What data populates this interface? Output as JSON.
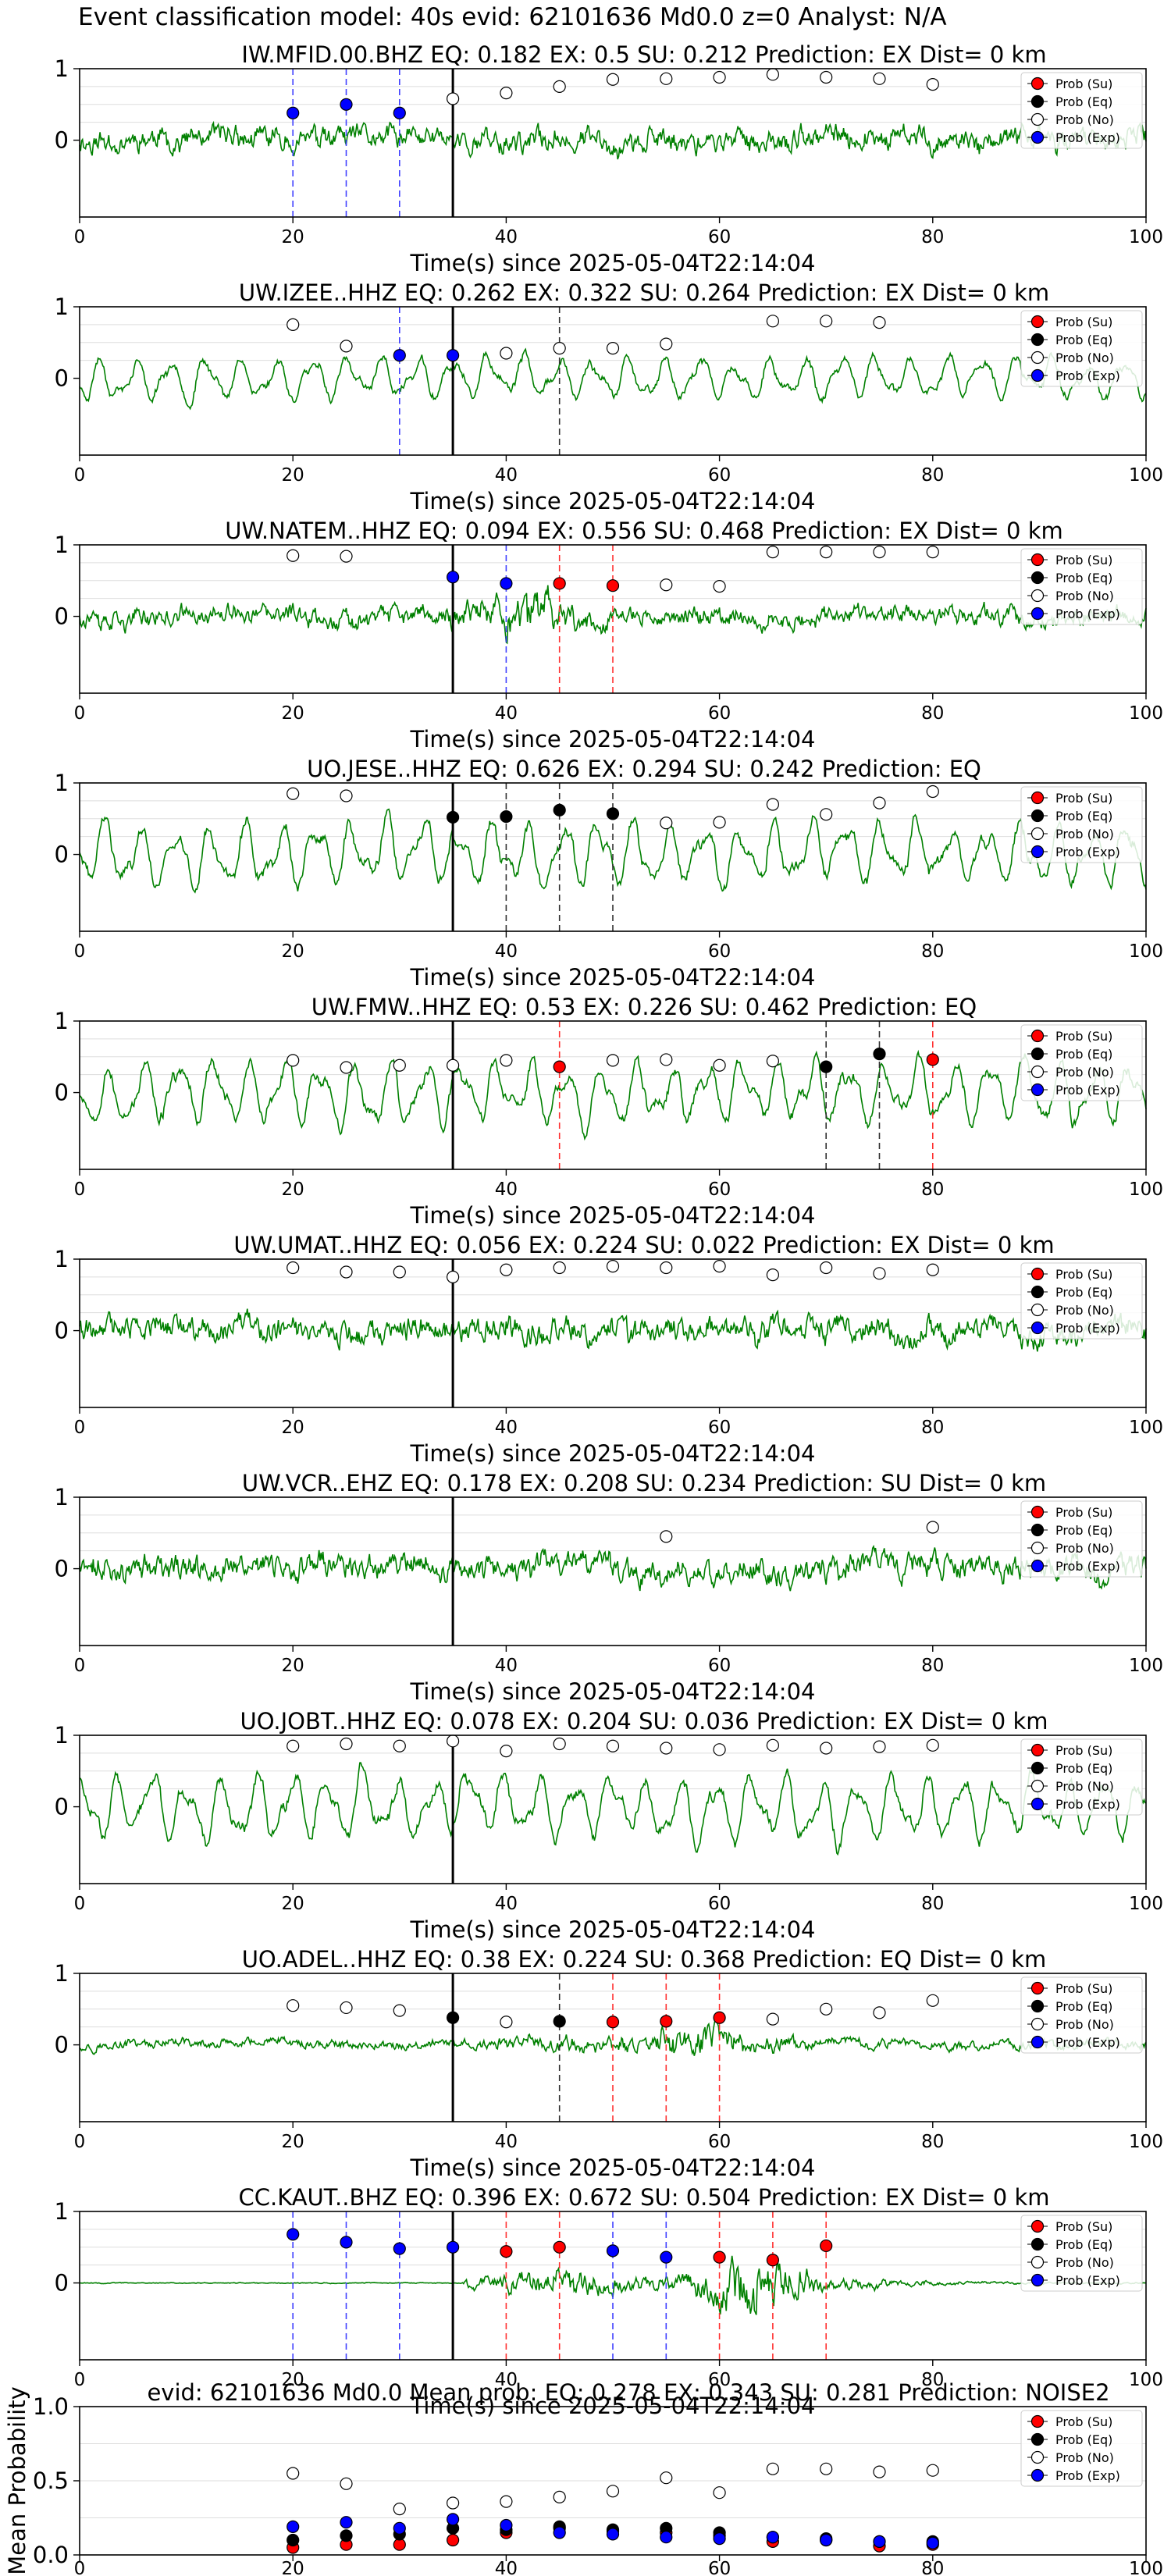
{
  "chart_data": {
    "type": "line",
    "suptitle": "Event classification model: 40s evid: 62101636 Md0.0 z=0 Analyst: N/A",
    "legend_entries": [
      "Prob (Su)",
      "Prob (Eq)",
      "Prob (No)",
      "Prob (Exp)"
    ],
    "legend_placement": "top-right",
    "colors": {
      "su": "#ff0000",
      "eq": "#000000",
      "no": "#ffffff",
      "exp": "#0000ff",
      "trace": "#008000",
      "grid": "#dddddd"
    },
    "xlim": [
      0,
      100
    ],
    "xticks": [
      "0",
      "20",
      "40",
      "60",
      "80",
      "100"
    ],
    "yticks": [
      "1",
      "0"
    ],
    "xlabel": "Time(s) since 2025-05-04T22:14:04",
    "origin_time_s": 35,
    "panels": [
      {
        "title": "IW.MFID.00.BHZ   EQ: 0.182  EX: 0.5  SU: 0.212   Prediction: EX    Dist= 0 km",
        "amp": 0.45,
        "style": "noisy",
        "seed": 11,
        "points": [
          {
            "x": 20,
            "cls": "exp",
            "v": 0.38
          },
          {
            "x": 25,
            "cls": "exp",
            "v": 0.5
          },
          {
            "x": 30,
            "cls": "exp",
            "v": 0.38
          },
          {
            "x": 35,
            "cls": "no",
            "v": 0.58
          },
          {
            "x": 40,
            "cls": "no",
            "v": 0.66
          },
          {
            "x": 45,
            "cls": "no",
            "v": 0.75
          },
          {
            "x": 50,
            "cls": "no",
            "v": 0.85
          },
          {
            "x": 55,
            "cls": "no",
            "v": 0.86
          },
          {
            "x": 60,
            "cls": "no",
            "v": 0.88
          },
          {
            "x": 65,
            "cls": "no",
            "v": 0.92
          },
          {
            "x": 70,
            "cls": "no",
            "v": 0.88
          },
          {
            "x": 75,
            "cls": "no",
            "v": 0.86
          },
          {
            "x": 80,
            "cls": "no",
            "v": 0.78
          }
        ],
        "vlines": [
          {
            "x": 20,
            "cls": "exp"
          },
          {
            "x": 25,
            "cls": "exp"
          },
          {
            "x": 30,
            "cls": "exp"
          }
        ]
      },
      {
        "title": "UW.IZEE..HHZ   EQ: 0.262  EX: 0.322  SU: 0.264   Prediction: EX    Dist= 0 km",
        "amp": 0.4,
        "style": "wavy",
        "seed": 23,
        "points": [
          {
            "x": 20,
            "cls": "no",
            "v": 0.75
          },
          {
            "x": 25,
            "cls": "no",
            "v": 0.45
          },
          {
            "x": 30,
            "cls": "exp",
            "v": 0.32
          },
          {
            "x": 35,
            "cls": "exp",
            "v": 0.32
          },
          {
            "x": 40,
            "cls": "no",
            "v": 0.35
          },
          {
            "x": 45,
            "cls": "no",
            "v": 0.42
          },
          {
            "x": 50,
            "cls": "no",
            "v": 0.42
          },
          {
            "x": 55,
            "cls": "no",
            "v": 0.48
          },
          {
            "x": 65,
            "cls": "no",
            "v": 0.8
          },
          {
            "x": 70,
            "cls": "no",
            "v": 0.8
          },
          {
            "x": 75,
            "cls": "no",
            "v": 0.78
          }
        ],
        "vlines": [
          {
            "x": 30,
            "cls": "exp"
          },
          {
            "x": 45,
            "cls": "eq"
          }
        ]
      },
      {
        "title": "UW.NATEM..HHZ   EQ: 0.094  EX: 0.556  SU: 0.468   Prediction: EX    Dist= 0 km",
        "amp": 0.5,
        "style": "burst",
        "seed": 37,
        "points": [
          {
            "x": 20,
            "cls": "no",
            "v": 0.85
          },
          {
            "x": 25,
            "cls": "no",
            "v": 0.84
          },
          {
            "x": 35,
            "cls": "exp",
            "v": 0.55
          },
          {
            "x": 40,
            "cls": "exp",
            "v": 0.46
          },
          {
            "x": 45,
            "cls": "su",
            "v": 0.46
          },
          {
            "x": 50,
            "cls": "su",
            "v": 0.43
          },
          {
            "x": 55,
            "cls": "no",
            "v": 0.44
          },
          {
            "x": 60,
            "cls": "no",
            "v": 0.42
          },
          {
            "x": 65,
            "cls": "no",
            "v": 0.9
          },
          {
            "x": 70,
            "cls": "no",
            "v": 0.9
          },
          {
            "x": 75,
            "cls": "no",
            "v": 0.9
          },
          {
            "x": 80,
            "cls": "no",
            "v": 0.9
          }
        ],
        "vlines": [
          {
            "x": 40,
            "cls": "exp"
          },
          {
            "x": 45,
            "cls": "su"
          },
          {
            "x": 50,
            "cls": "su"
          }
        ]
      },
      {
        "title": "UO.JESE..HHZ   EQ: 0.626  EX: 0.294  SU: 0.242   Prediction: EQ",
        "amp": 0.6,
        "style": "wavy",
        "seed": 41,
        "points": [
          {
            "x": 20,
            "cls": "no",
            "v": 0.85
          },
          {
            "x": 25,
            "cls": "no",
            "v": 0.82
          },
          {
            "x": 35,
            "cls": "eq",
            "v": 0.52
          },
          {
            "x": 40,
            "cls": "eq",
            "v": 0.53
          },
          {
            "x": 45,
            "cls": "eq",
            "v": 0.62
          },
          {
            "x": 50,
            "cls": "eq",
            "v": 0.57
          },
          {
            "x": 55,
            "cls": "no",
            "v": 0.44
          },
          {
            "x": 60,
            "cls": "no",
            "v": 0.45
          },
          {
            "x": 65,
            "cls": "no",
            "v": 0.7
          },
          {
            "x": 70,
            "cls": "no",
            "v": 0.56
          },
          {
            "x": 75,
            "cls": "no",
            "v": 0.72
          },
          {
            "x": 80,
            "cls": "no",
            "v": 0.88
          }
        ],
        "vlines": [
          {
            "x": 40,
            "cls": "eq"
          },
          {
            "x": 45,
            "cls": "eq"
          },
          {
            "x": 50,
            "cls": "eq"
          }
        ]
      },
      {
        "title": "UW.FMW..HHZ   EQ: 0.53  EX: 0.226  SU: 0.462   Prediction: EQ",
        "amp": 0.6,
        "style": "wavy",
        "seed": 53,
        "points": [
          {
            "x": 20,
            "cls": "no",
            "v": 0.45
          },
          {
            "x": 25,
            "cls": "no",
            "v": 0.35
          },
          {
            "x": 30,
            "cls": "no",
            "v": 0.38
          },
          {
            "x": 35,
            "cls": "no",
            "v": 0.38
          },
          {
            "x": 40,
            "cls": "no",
            "v": 0.45
          },
          {
            "x": 45,
            "cls": "su",
            "v": 0.36
          },
          {
            "x": 50,
            "cls": "no",
            "v": 0.45
          },
          {
            "x": 55,
            "cls": "no",
            "v": 0.46
          },
          {
            "x": 60,
            "cls": "no",
            "v": 0.38
          },
          {
            "x": 65,
            "cls": "no",
            "v": 0.44
          },
          {
            "x": 70,
            "cls": "eq",
            "v": 0.36
          },
          {
            "x": 75,
            "cls": "eq",
            "v": 0.54
          },
          {
            "x": 80,
            "cls": "su",
            "v": 0.46
          }
        ],
        "vlines": [
          {
            "x": 45,
            "cls": "su"
          },
          {
            "x": 70,
            "cls": "eq"
          },
          {
            "x": 75,
            "cls": "eq"
          },
          {
            "x": 80,
            "cls": "su"
          }
        ]
      },
      {
        "title": "UW.UMAT..HHZ   EQ: 0.056  EX: 0.224  SU: 0.022   Prediction: EX    Dist= 0 km",
        "amp": 0.5,
        "style": "noisy",
        "seed": 61,
        "points": [
          {
            "x": 20,
            "cls": "no",
            "v": 0.88
          },
          {
            "x": 25,
            "cls": "no",
            "v": 0.82
          },
          {
            "x": 30,
            "cls": "no",
            "v": 0.82
          },
          {
            "x": 35,
            "cls": "no",
            "v": 0.75
          },
          {
            "x": 40,
            "cls": "no",
            "v": 0.85
          },
          {
            "x": 45,
            "cls": "no",
            "v": 0.88
          },
          {
            "x": 50,
            "cls": "no",
            "v": 0.9
          },
          {
            "x": 55,
            "cls": "no",
            "v": 0.88
          },
          {
            "x": 60,
            "cls": "no",
            "v": 0.9
          },
          {
            "x": 65,
            "cls": "no",
            "v": 0.78
          },
          {
            "x": 70,
            "cls": "no",
            "v": 0.88
          },
          {
            "x": 75,
            "cls": "no",
            "v": 0.8
          },
          {
            "x": 80,
            "cls": "no",
            "v": 0.85
          }
        ],
        "vlines": []
      },
      {
        "title": "UW.VCR..EHZ   EQ: 0.178  EX: 0.208  SU: 0.234   Prediction: SU    Dist= 0 km",
        "amp": 0.5,
        "style": "noisy",
        "seed": 71,
        "points": [
          {
            "x": 55,
            "cls": "no",
            "v": 0.45
          },
          {
            "x": 80,
            "cls": "no",
            "v": 0.58
          }
        ],
        "vlines": []
      },
      {
        "title": "UO.JOBT..HHZ   EQ: 0.078  EX: 0.204  SU: 0.036   Prediction: EX    Dist= 0 km",
        "amp": 0.6,
        "style": "wavy",
        "seed": 83,
        "points": [
          {
            "x": 20,
            "cls": "no",
            "v": 0.85
          },
          {
            "x": 25,
            "cls": "no",
            "v": 0.88
          },
          {
            "x": 30,
            "cls": "no",
            "v": 0.85
          },
          {
            "x": 35,
            "cls": "no",
            "v": 0.92
          },
          {
            "x": 40,
            "cls": "no",
            "v": 0.78
          },
          {
            "x": 45,
            "cls": "no",
            "v": 0.88
          },
          {
            "x": 50,
            "cls": "no",
            "v": 0.85
          },
          {
            "x": 55,
            "cls": "no",
            "v": 0.82
          },
          {
            "x": 60,
            "cls": "no",
            "v": 0.8
          },
          {
            "x": 65,
            "cls": "no",
            "v": 0.86
          },
          {
            "x": 70,
            "cls": "no",
            "v": 0.82
          },
          {
            "x": 75,
            "cls": "no",
            "v": 0.84
          },
          {
            "x": 80,
            "cls": "no",
            "v": 0.86
          }
        ],
        "vlines": []
      },
      {
        "title": "UO.ADEL..HHZ   EQ: 0.38  EX: 0.224  SU: 0.368   Prediction: EQ    Dist= 0 km",
        "amp": 0.25,
        "style": "burst2",
        "seed": 97,
        "points": [
          {
            "x": 20,
            "cls": "no",
            "v": 0.55
          },
          {
            "x": 25,
            "cls": "no",
            "v": 0.52
          },
          {
            "x": 30,
            "cls": "no",
            "v": 0.48
          },
          {
            "x": 35,
            "cls": "eq",
            "v": 0.38
          },
          {
            "x": 40,
            "cls": "no",
            "v": 0.32
          },
          {
            "x": 45,
            "cls": "eq",
            "v": 0.33
          },
          {
            "x": 50,
            "cls": "su",
            "v": 0.32
          },
          {
            "x": 55,
            "cls": "su",
            "v": 0.33
          },
          {
            "x": 60,
            "cls": "su",
            "v": 0.38
          },
          {
            "x": 65,
            "cls": "no",
            "v": 0.36
          },
          {
            "x": 70,
            "cls": "no",
            "v": 0.5
          },
          {
            "x": 75,
            "cls": "no",
            "v": 0.45
          },
          {
            "x": 80,
            "cls": "no",
            "v": 0.62
          }
        ],
        "vlines": [
          {
            "x": 45,
            "cls": "eq"
          },
          {
            "x": 50,
            "cls": "su"
          },
          {
            "x": 55,
            "cls": "su"
          },
          {
            "x": 60,
            "cls": "su"
          }
        ]
      },
      {
        "title": "CC.KAUT..BHZ   EQ: 0.396  EX: 0.672  SU: 0.504   Prediction: EX    Dist= 0 km",
        "amp": 0.05,
        "style": "burst3",
        "seed": 101,
        "points": [
          {
            "x": 20,
            "cls": "exp",
            "v": 0.68
          },
          {
            "x": 25,
            "cls": "exp",
            "v": 0.57
          },
          {
            "x": 30,
            "cls": "exp",
            "v": 0.48
          },
          {
            "x": 35,
            "cls": "exp",
            "v": 0.5
          },
          {
            "x": 40,
            "cls": "su",
            "v": 0.44
          },
          {
            "x": 45,
            "cls": "su",
            "v": 0.5
          },
          {
            "x": 50,
            "cls": "exp",
            "v": 0.45
          },
          {
            "x": 55,
            "cls": "exp",
            "v": 0.36
          },
          {
            "x": 60,
            "cls": "su",
            "v": 0.36
          },
          {
            "x": 65,
            "cls": "su",
            "v": 0.32
          },
          {
            "x": 70,
            "cls": "su",
            "v": 0.52
          }
        ],
        "vlines": [
          {
            "x": 20,
            "cls": "exp"
          },
          {
            "x": 25,
            "cls": "exp"
          },
          {
            "x": 30,
            "cls": "exp"
          },
          {
            "x": 40,
            "cls": "su"
          },
          {
            "x": 45,
            "cls": "su"
          },
          {
            "x": 50,
            "cls": "exp"
          },
          {
            "x": 55,
            "cls": "exp"
          },
          {
            "x": 60,
            "cls": "su"
          },
          {
            "x": 65,
            "cls": "su"
          },
          {
            "x": 70,
            "cls": "su"
          }
        ]
      }
    ],
    "summary": {
      "title": "evid: 62101636  Md0.0   Mean prob:   EQ: 0.278  EX: 0.343  SU: 0.281   Prediction: NOISE2",
      "ylabel": "Mean Probability",
      "ylim": [
        0,
        1
      ],
      "yticks": [
        "0.0",
        "0.5",
        "1.0"
      ],
      "x": [
        20,
        25,
        30,
        35,
        40,
        45,
        50,
        55,
        60,
        65,
        70,
        75,
        80
      ],
      "series": [
        {
          "name": "Prob (Su)",
          "cls": "su",
          "values": [
            0.05,
            0.07,
            0.07,
            0.1,
            0.15,
            0.18,
            0.16,
            0.15,
            0.13,
            0.09,
            0.1,
            0.06,
            0.07
          ]
        },
        {
          "name": "Prob (Eq)",
          "cls": "eq",
          "values": [
            0.1,
            0.13,
            0.14,
            0.18,
            0.17,
            0.19,
            0.17,
            0.18,
            0.15,
            0.12,
            0.11,
            0.09,
            0.09
          ]
        },
        {
          "name": "Prob (No)",
          "cls": "no",
          "values": [
            0.55,
            0.48,
            0.31,
            0.35,
            0.36,
            0.39,
            0.43,
            0.52,
            0.42,
            0.58,
            0.58,
            0.56,
            0.57
          ]
        },
        {
          "name": "Prob (Exp)",
          "cls": "exp",
          "values": [
            0.19,
            0.22,
            0.18,
            0.24,
            0.2,
            0.15,
            0.14,
            0.12,
            0.11,
            0.12,
            0.1,
            0.09,
            0.08
          ]
        }
      ]
    }
  }
}
